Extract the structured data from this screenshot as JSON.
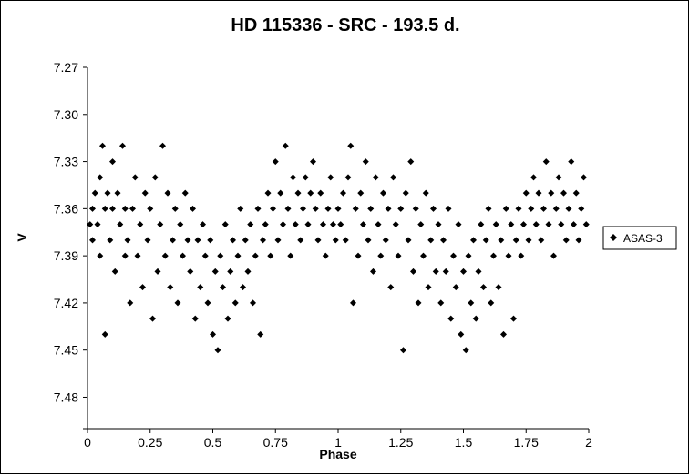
{
  "chart_data": {
    "type": "scatter",
    "title": "HD 115336 - SRC - 193.5 d.",
    "xlabel": "Phase",
    "ylabel": "V",
    "xlim": [
      0,
      2
    ],
    "ylim": [
      7.27,
      7.5
    ],
    "y_inverted": true,
    "x_ticks": [
      0,
      0.25,
      0.5,
      0.75,
      1,
      1.25,
      1.5,
      1.75,
      2
    ],
    "x_tick_labels": [
      "0",
      "0.25",
      "0.5",
      "0.75",
      "1",
      "1.25",
      "1.5",
      "1.75",
      "2"
    ],
    "y_ticks": [
      7.27,
      7.3,
      7.33,
      7.36,
      7.39,
      7.42,
      7.45,
      7.48
    ],
    "y_tick_labels": [
      "7.27",
      "7.30",
      "7.33",
      "7.36",
      "7.39",
      "7.42",
      "7.45",
      "7.48"
    ],
    "grid": false,
    "legend_position": "right",
    "marker": "diamond",
    "marker_color": "#000000",
    "series": [
      {
        "name": "ASAS-3",
        "points": [
          [
            0.01,
            7.37
          ],
          [
            0.02,
            7.36
          ],
          [
            0.02,
            7.38
          ],
          [
            0.03,
            7.35
          ],
          [
            0.04,
            7.37
          ],
          [
            0.05,
            7.34
          ],
          [
            0.05,
            7.39
          ],
          [
            0.06,
            7.32
          ],
          [
            0.07,
            7.36
          ],
          [
            0.07,
            7.44
          ],
          [
            0.08,
            7.35
          ],
          [
            0.09,
            7.38
          ],
          [
            0.1,
            7.36
          ],
          [
            0.1,
            7.33
          ],
          [
            0.11,
            7.4
          ],
          [
            0.12,
            7.35
          ],
          [
            0.13,
            7.37
          ],
          [
            0.14,
            7.32
          ],
          [
            0.15,
            7.39
          ],
          [
            0.15,
            7.36
          ],
          [
            0.16,
            7.38
          ],
          [
            0.17,
            7.42
          ],
          [
            0.18,
            7.36
          ],
          [
            0.19,
            7.34
          ],
          [
            0.2,
            7.39
          ],
          [
            0.21,
            7.37
          ],
          [
            0.22,
            7.41
          ],
          [
            0.23,
            7.35
          ],
          [
            0.24,
            7.38
          ],
          [
            0.25,
            7.36
          ],
          [
            0.26,
            7.43
          ],
          [
            0.27,
            7.34
          ],
          [
            0.28,
            7.4
          ],
          [
            0.29,
            7.37
          ],
          [
            0.3,
            7.32
          ],
          [
            0.31,
            7.39
          ],
          [
            0.32,
            7.35
          ],
          [
            0.33,
            7.41
          ],
          [
            0.34,
            7.38
          ],
          [
            0.35,
            7.36
          ],
          [
            0.36,
            7.42
          ],
          [
            0.37,
            7.37
          ],
          [
            0.38,
            7.39
          ],
          [
            0.39,
            7.35
          ],
          [
            0.4,
            7.38
          ],
          [
            0.41,
            7.4
          ],
          [
            0.42,
            7.36
          ],
          [
            0.43,
            7.43
          ],
          [
            0.44,
            7.38
          ],
          [
            0.45,
            7.41
          ],
          [
            0.46,
            7.37
          ],
          [
            0.47,
            7.39
          ],
          [
            0.48,
            7.42
          ],
          [
            0.49,
            7.38
          ],
          [
            0.5,
            7.44
          ],
          [
            0.51,
            7.4
          ],
          [
            0.52,
            7.45
          ],
          [
            0.53,
            7.39
          ],
          [
            0.54,
            7.41
          ],
          [
            0.55,
            7.37
          ],
          [
            0.56,
            7.43
          ],
          [
            0.57,
            7.4
          ],
          [
            0.58,
            7.38
          ],
          [
            0.59,
            7.42
          ],
          [
            0.6,
            7.39
          ],
          [
            0.61,
            7.36
          ],
          [
            0.62,
            7.41
          ],
          [
            0.63,
            7.38
          ],
          [
            0.64,
            7.4
          ],
          [
            0.65,
            7.37
          ],
          [
            0.66,
            7.42
          ],
          [
            0.67,
            7.39
          ],
          [
            0.68,
            7.36
          ],
          [
            0.69,
            7.44
          ],
          [
            0.7,
            7.38
          ],
          [
            0.71,
            7.37
          ],
          [
            0.72,
            7.35
          ],
          [
            0.73,
            7.39
          ],
          [
            0.74,
            7.36
          ],
          [
            0.75,
            7.33
          ],
          [
            0.76,
            7.38
          ],
          [
            0.77,
            7.35
          ],
          [
            0.78,
            7.37
          ],
          [
            0.79,
            7.32
          ],
          [
            0.8,
            7.36
          ],
          [
            0.81,
            7.39
          ],
          [
            0.82,
            7.34
          ],
          [
            0.83,
            7.37
          ],
          [
            0.84,
            7.35
          ],
          [
            0.85,
            7.38
          ],
          [
            0.86,
            7.36
          ],
          [
            0.87,
            7.34
          ],
          [
            0.88,
            7.37
          ],
          [
            0.89,
            7.35
          ],
          [
            0.9,
            7.33
          ],
          [
            0.91,
            7.36
          ],
          [
            0.92,
            7.38
          ],
          [
            0.93,
            7.35
          ],
          [
            0.94,
            7.37
          ],
          [
            0.95,
            7.39
          ],
          [
            0.96,
            7.36
          ],
          [
            0.97,
            7.34
          ],
          [
            0.98,
            7.37
          ],
          [
            0.99,
            7.38
          ],
          [
            1.0,
            7.36
          ],
          [
            1.01,
            7.37
          ],
          [
            1.02,
            7.35
          ],
          [
            1.03,
            7.38
          ],
          [
            1.04,
            7.34
          ],
          [
            1.05,
            7.32
          ],
          [
            1.06,
            7.42
          ],
          [
            1.07,
            7.36
          ],
          [
            1.08,
            7.39
          ],
          [
            1.09,
            7.35
          ],
          [
            1.1,
            7.37
          ],
          [
            1.11,
            7.33
          ],
          [
            1.12,
            7.38
          ],
          [
            1.13,
            7.36
          ],
          [
            1.14,
            7.4
          ],
          [
            1.15,
            7.34
          ],
          [
            1.16,
            7.37
          ],
          [
            1.17,
            7.39
          ],
          [
            1.18,
            7.35
          ],
          [
            1.19,
            7.38
          ],
          [
            1.2,
            7.36
          ],
          [
            1.21,
            7.41
          ],
          [
            1.22,
            7.34
          ],
          [
            1.23,
            7.37
          ],
          [
            1.24,
            7.39
          ],
          [
            1.25,
            7.36
          ],
          [
            1.26,
            7.45
          ],
          [
            1.27,
            7.35
          ],
          [
            1.28,
            7.38
          ],
          [
            1.29,
            7.33
          ],
          [
            1.3,
            7.4
          ],
          [
            1.31,
            7.36
          ],
          [
            1.32,
            7.42
          ],
          [
            1.33,
            7.37
          ],
          [
            1.34,
            7.39
          ],
          [
            1.35,
            7.35
          ],
          [
            1.36,
            7.41
          ],
          [
            1.37,
            7.38
          ],
          [
            1.38,
            7.36
          ],
          [
            1.39,
            7.4
          ],
          [
            1.4,
            7.37
          ],
          [
            1.41,
            7.42
          ],
          [
            1.42,
            7.38
          ],
          [
            1.43,
            7.4
          ],
          [
            1.44,
            7.36
          ],
          [
            1.45,
            7.43
          ],
          [
            1.46,
            7.39
          ],
          [
            1.47,
            7.41
          ],
          [
            1.48,
            7.37
          ],
          [
            1.49,
            7.44
          ],
          [
            1.5,
            7.4
          ],
          [
            1.51,
            7.45
          ],
          [
            1.52,
            7.39
          ],
          [
            1.53,
            7.42
          ],
          [
            1.54,
            7.38
          ],
          [
            1.55,
            7.43
          ],
          [
            1.56,
            7.4
          ],
          [
            1.57,
            7.37
          ],
          [
            1.58,
            7.41
          ],
          [
            1.59,
            7.38
          ],
          [
            1.6,
            7.36
          ],
          [
            1.61,
            7.42
          ],
          [
            1.62,
            7.39
          ],
          [
            1.63,
            7.37
          ],
          [
            1.64,
            7.41
          ],
          [
            1.65,
            7.38
          ],
          [
            1.66,
            7.44
          ],
          [
            1.67,
            7.36
          ],
          [
            1.68,
            7.39
          ],
          [
            1.69,
            7.37
          ],
          [
            1.7,
            7.43
          ],
          [
            1.71,
            7.38
          ],
          [
            1.72,
            7.36
          ],
          [
            1.73,
            7.39
          ],
          [
            1.74,
            7.37
          ],
          [
            1.75,
            7.35
          ],
          [
            1.76,
            7.38
          ],
          [
            1.77,
            7.36
          ],
          [
            1.78,
            7.34
          ],
          [
            1.79,
            7.37
          ],
          [
            1.8,
            7.35
          ],
          [
            1.81,
            7.38
          ],
          [
            1.82,
            7.36
          ],
          [
            1.83,
            7.33
          ],
          [
            1.84,
            7.37
          ],
          [
            1.85,
            7.35
          ],
          [
            1.86,
            7.39
          ],
          [
            1.87,
            7.36
          ],
          [
            1.88,
            7.34
          ],
          [
            1.89,
            7.37
          ],
          [
            1.9,
            7.35
          ],
          [
            1.91,
            7.38
          ],
          [
            1.92,
            7.36
          ],
          [
            1.93,
            7.33
          ],
          [
            1.94,
            7.37
          ],
          [
            1.95,
            7.35
          ],
          [
            1.96,
            7.38
          ],
          [
            1.97,
            7.36
          ],
          [
            1.98,
            7.34
          ],
          [
            1.99,
            7.37
          ]
        ]
      }
    ]
  }
}
